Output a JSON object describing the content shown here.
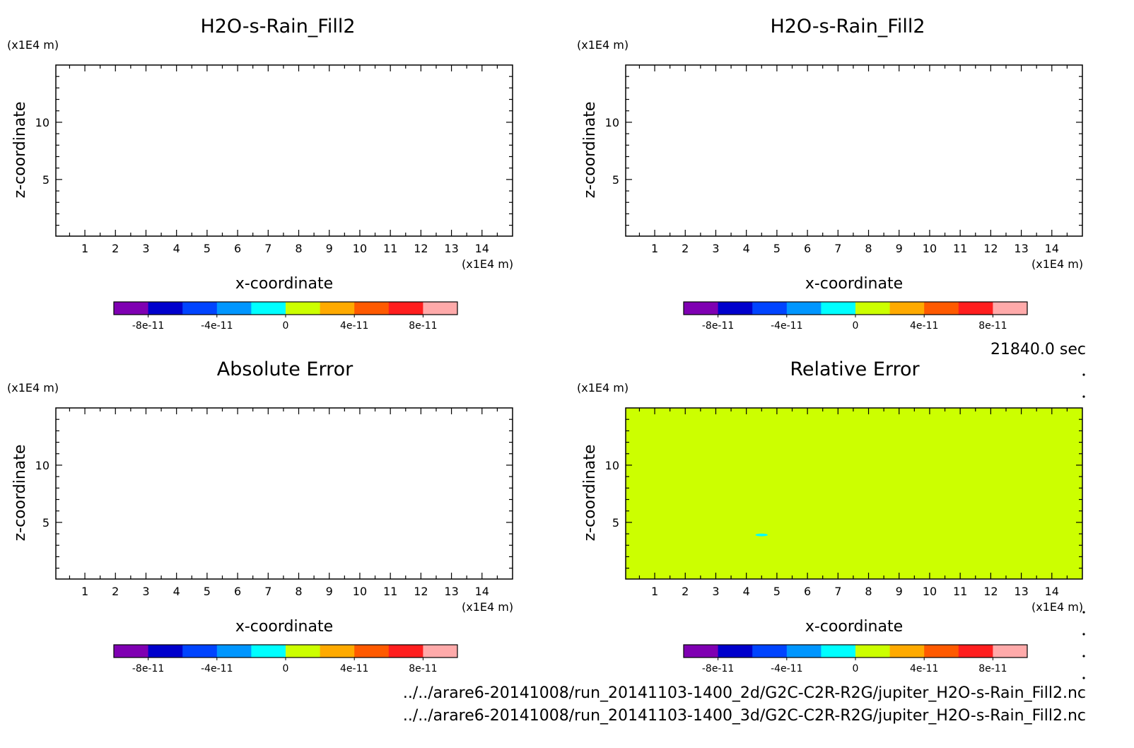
{
  "colors": [
    "#7f00b2",
    "#0000cc",
    "#0044ff",
    "#0096ff",
    "#00ffff",
    "#ccff00",
    "#ffaa00",
    "#ff5a00",
    "#ff1e1e",
    "#ffaaaa"
  ],
  "colorbar_ticks": [
    "-8e-11",
    "-4e-11",
    "0",
    "4e-11",
    "8e-11"
  ],
  "time_label": "21840.0 sec",
  "footer": {
    "file1": "../../arare6-20141008/run_20141103-1400_2d/G2C-C2R-R2G/jupiter_H2O-s-Rain_Fill2.nc",
    "file2": "../../arare6-20141008/run_20141103-1400_3d/G2C-C2R-R2G/jupiter_H2O-s-Rain_Fill2.nc"
  },
  "chart_data": [
    {
      "type": "heatmap",
      "title": "H2O-s-Rain_Fill2",
      "xlabel": "x-coordinate",
      "ylabel": "z-coordinate",
      "x_unit": "(x1E4 m)",
      "y_unit": "(x1E4 m)",
      "xlim": [
        0.05,
        15
      ],
      "ylim": [
        0.05,
        15
      ],
      "x_ticks": [
        "1",
        "2",
        "3",
        "4",
        "5",
        "6",
        "7",
        "8",
        "9",
        "10",
        "11",
        "12",
        "13",
        "14"
      ],
      "y_ticks": [
        "5",
        "10"
      ],
      "fill": "none",
      "features": []
    },
    {
      "type": "heatmap",
      "title": "H2O-s-Rain_Fill2",
      "xlabel": "x-coordinate",
      "ylabel": "z-coordinate",
      "x_unit": "(x1E4 m)",
      "y_unit": "(x1E4 m)",
      "xlim": [
        0.05,
        15
      ],
      "ylim": [
        0.05,
        15
      ],
      "x_ticks": [
        "1",
        "2",
        "3",
        "4",
        "5",
        "6",
        "7",
        "8",
        "9",
        "10",
        "11",
        "12",
        "13",
        "14"
      ],
      "y_ticks": [
        "5",
        "10"
      ],
      "fill": "none",
      "features": []
    },
    {
      "type": "heatmap",
      "title": "Absolute Error",
      "xlabel": "x-coordinate",
      "ylabel": "z-coordinate",
      "x_unit": "(x1E4 m)",
      "y_unit": "(x1E4 m)",
      "xlim": [
        0.05,
        15
      ],
      "ylim": [
        0.05,
        15
      ],
      "x_ticks": [
        "1",
        "2",
        "3",
        "4",
        "5",
        "6",
        "7",
        "8",
        "9",
        "10",
        "11",
        "12",
        "13",
        "14"
      ],
      "y_ticks": [
        "5",
        "10"
      ],
      "fill": "none",
      "features": []
    },
    {
      "type": "heatmap",
      "title": "Relative Error",
      "xlabel": "x-coordinate",
      "ylabel": "z-coordinate",
      "x_unit": "(x1E4 m)",
      "y_unit": "(x1E4 m)",
      "xlim": [
        0.05,
        15
      ],
      "ylim": [
        0.05,
        15
      ],
      "x_ticks": [
        "1",
        "2",
        "3",
        "4",
        "5",
        "6",
        "7",
        "8",
        "9",
        "10",
        "11",
        "12",
        "13",
        "14"
      ],
      "y_ticks": [
        "5",
        "10"
      ],
      "fill": "#ccff00",
      "features": [
        {
          "x": 4.5,
          "z": 3.9,
          "rx": 0.2,
          "rz": 0.12,
          "color": "#00ffff"
        }
      ]
    }
  ]
}
